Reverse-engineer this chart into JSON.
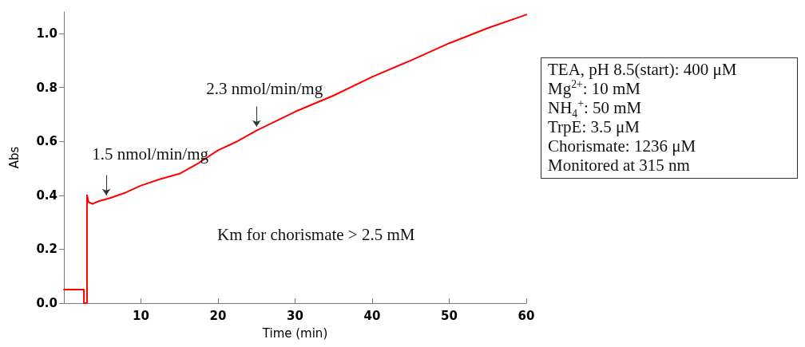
{
  "chart_data": {
    "type": "line",
    "xlabel": "Time (min)",
    "ylabel": "Abs",
    "x": [
      0,
      2.6,
      2.6,
      3.0,
      3.0,
      3.2,
      3.7,
      4.5,
      6,
      8,
      10,
      12.5,
      15,
      17.5,
      20,
      22.5,
      25,
      27.5,
      30,
      35,
      40,
      45,
      50,
      55,
      60
    ],
    "series": [
      {
        "color": "#ff0000",
        "values": [
          0.05,
          0.05,
          0,
          0,
          0.4,
          0.375,
          0.368,
          0.378,
          0.39,
          0.41,
          0.436,
          0.46,
          0.48,
          0.52,
          0.567,
          0.6,
          0.64,
          0.675,
          0.71,
          0.77,
          0.839,
          0.9,
          0.964,
          1.02,
          1.07
        ]
      }
    ],
    "xlim": [
      0,
      60
    ],
    "xticks": [
      10,
      20,
      30,
      40,
      50,
      60
    ],
    "ylim": [
      0,
      1.08
    ],
    "yticks": [
      {
        "value": 0,
        "label": "0.0"
      },
      0.2,
      0.4,
      0.6,
      0.8,
      {
        "value": 1,
        "label": "1.0"
      }
    ],
    "grid": false,
    "marker": "none",
    "line_style": "solid",
    "annotations": [
      {
        "text": "1.5 nmol/min/mg",
        "x": 5.5,
        "y": 0.385
      },
      {
        "text": "2.3 nmol/min/mg",
        "x": 25,
        "y": 0.64
      },
      "Km for chorismate > 2.5 mM",
      "TEA, pH 8.5(start): 400 μM\nMg$^{2+}$: 10 mM\nNH$_{4}$$^{+}$: 50 mM\nTrpE: 3.5 μM\nChorismate: 1236 μM\nMonitored at 315 nm"
    ]
  }
}
